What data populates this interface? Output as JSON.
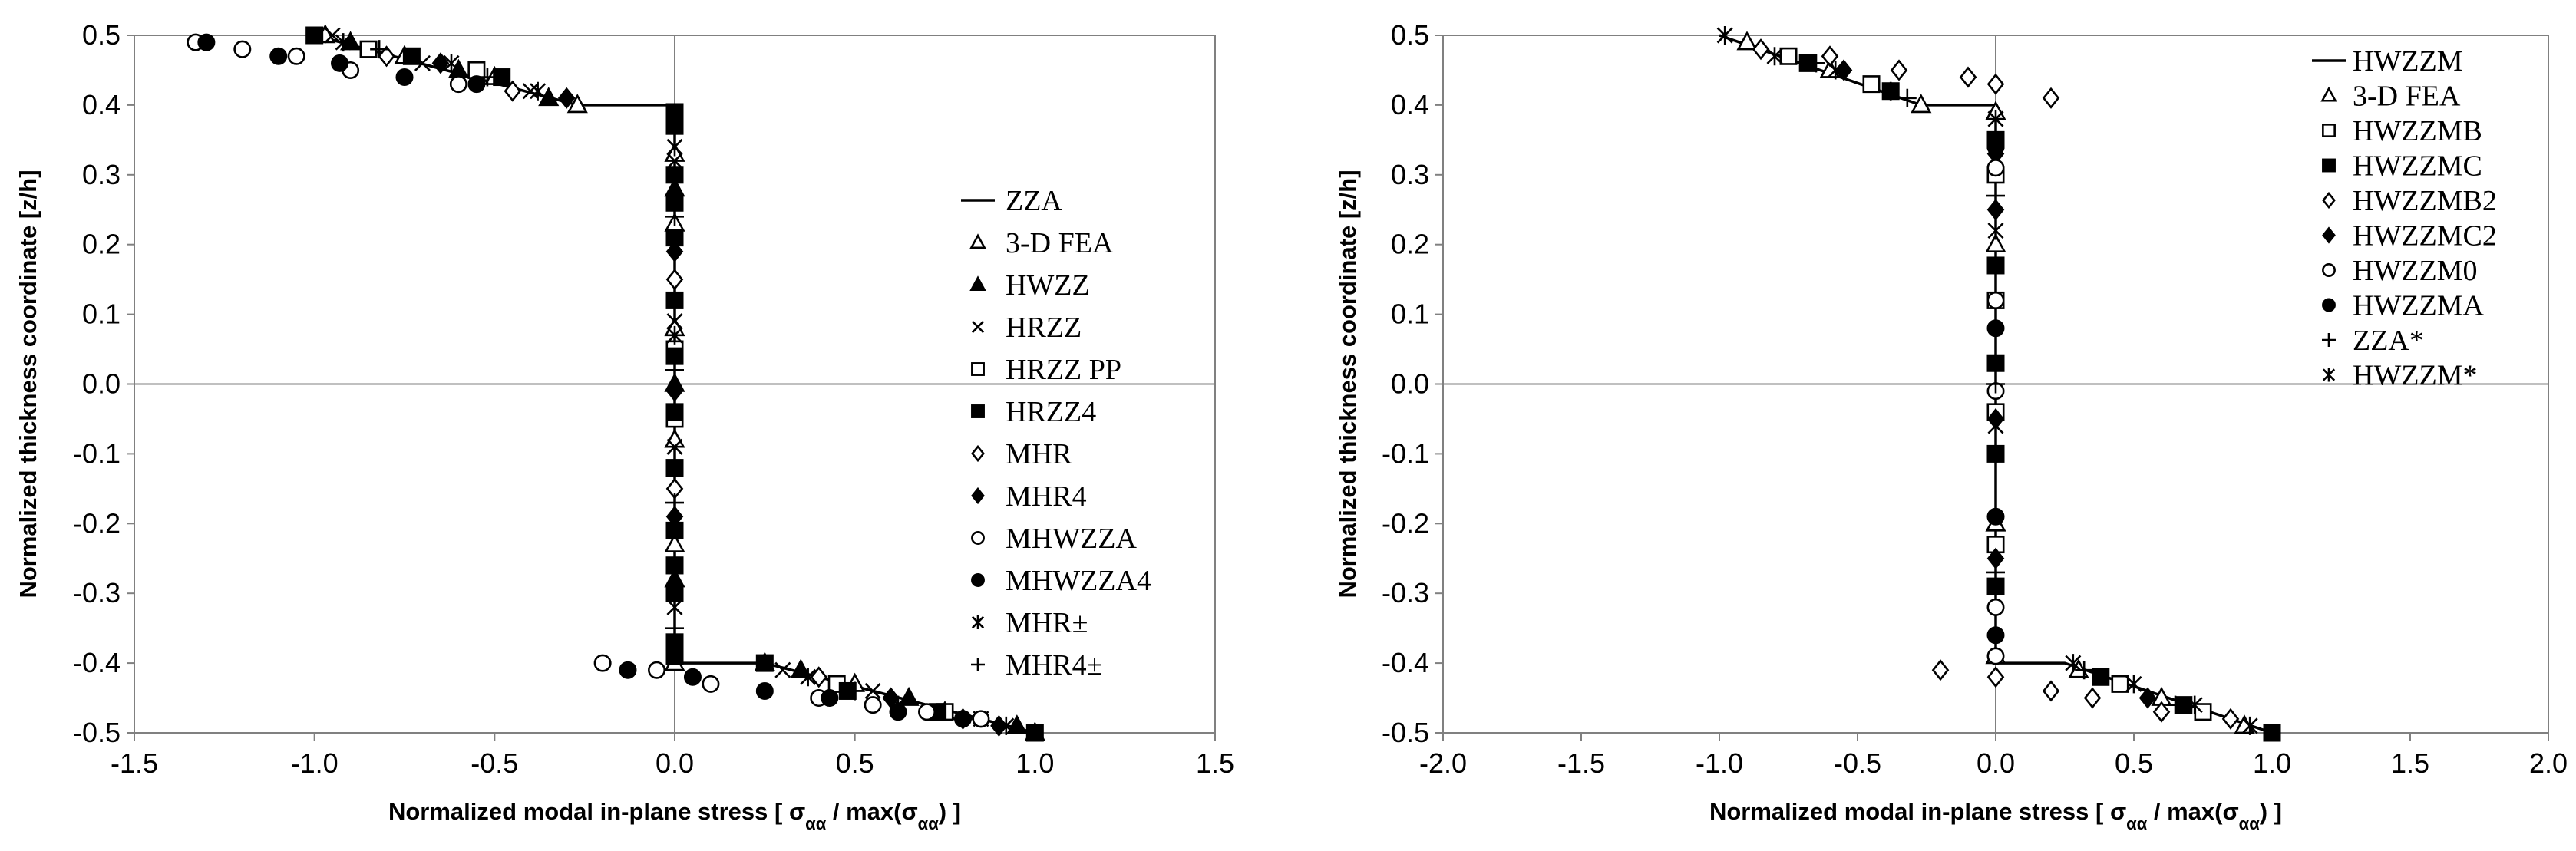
{
  "chart_data": [
    {
      "type": "scatter",
      "title": "",
      "xlabel": "Normalized modal in-plane stress   [ σ_αα / max(σ_αα) ]",
      "ylabel": "Normalized thickness coordinate [z/h]",
      "xlim": [
        -1.5,
        1.5
      ],
      "ylim": [
        -0.5,
        0.5
      ],
      "xticks": [
        "-1.5",
        "-1.0",
        "-0.5",
        "0.0",
        "0.5",
        "1.0",
        "1.5"
      ],
      "yticks": [
        "0.5",
        "0.4",
        "0.3",
        "0.2",
        "0.1",
        "0.0",
        "-0.1",
        "-0.2",
        "-0.3",
        "-0.4",
        "-0.5"
      ],
      "legend_position": "right-center",
      "reference_line": {
        "name": "ZZA",
        "x": [
          -1.0,
          -0.27,
          0.0,
          0.0,
          0.25,
          1.0
        ],
        "y": [
          0.5,
          0.4,
          0.4,
          -0.4,
          -0.4,
          -0.5
        ]
      },
      "series": [
        {
          "name": "ZZA",
          "marker": "line"
        },
        {
          "name": "3-D FEA",
          "marker": "triangle-open",
          "x": [
            -0.97,
            -0.75,
            -0.5,
            -0.27,
            0.0,
            0.0,
            0.0,
            0.0,
            0.0,
            0.0,
            0.25,
            0.5,
            0.75,
            1.0
          ],
          "y": [
            0.5,
            0.47,
            0.44,
            0.4,
            0.33,
            0.23,
            0.08,
            -0.08,
            -0.23,
            -0.4,
            -0.4,
            -0.43,
            -0.47,
            -0.5
          ]
        },
        {
          "name": "HWZZ",
          "marker": "triangle-filled",
          "x": [
            -0.9,
            -0.6,
            -0.35,
            0.0,
            0.0,
            0.0,
            0.35,
            0.65,
            0.95
          ],
          "y": [
            0.49,
            0.45,
            0.41,
            0.28,
            0.0,
            -0.28,
            -0.41,
            -0.45,
            -0.49
          ]
        },
        {
          "name": "HRZZ",
          "marker": "x",
          "x": [
            -0.95,
            -0.7,
            -0.4,
            0.0,
            0.0,
            0.0,
            0.0,
            0.3,
            0.55,
            0.85
          ],
          "y": [
            0.5,
            0.46,
            0.42,
            0.32,
            0.09,
            -0.09,
            -0.32,
            -0.41,
            -0.44,
            -0.48
          ]
        },
        {
          "name": "HRZZ PP",
          "marker": "square-open",
          "x": [
            -0.85,
            -0.55,
            0.0,
            0.0,
            0.0,
            0.0,
            0.45,
            0.75
          ],
          "y": [
            0.48,
            0.45,
            0.26,
            0.05,
            -0.05,
            -0.26,
            -0.43,
            -0.47
          ]
        },
        {
          "name": "HRZZ4",
          "marker": "square-filled",
          "x": [
            -1.0,
            -0.73,
            -0.48,
            0.0,
            0.0,
            0.0,
            0.0,
            0.0,
            0.0,
            0.0,
            0.0,
            0.0,
            0.0,
            0.0,
            0.0,
            0.0,
            0.0,
            0.25,
            0.48,
            0.73,
            1.0
          ],
          "y": [
            0.5,
            0.47,
            0.44,
            0.39,
            0.37,
            0.3,
            0.26,
            0.21,
            0.12,
            0.04,
            -0.04,
            -0.12,
            -0.21,
            -0.26,
            -0.3,
            -0.37,
            -0.39,
            -0.4,
            -0.44,
            -0.47,
            -0.5
          ]
        },
        {
          "name": "MHR",
          "marker": "diamond-open",
          "x": [
            -0.8,
            -0.45,
            0.0,
            0.0,
            0.4,
            0.8
          ],
          "y": [
            0.47,
            0.42,
            0.15,
            -0.15,
            -0.42,
            -0.48
          ]
        },
        {
          "name": "MHR4",
          "marker": "diamond-filled",
          "x": [
            -0.65,
            -0.3,
            0.0,
            0.0,
            0.0,
            0.6,
            0.9
          ],
          "y": [
            0.46,
            0.41,
            0.19,
            -0.01,
            -0.19,
            -0.45,
            -0.49
          ]
        },
        {
          "name": "MHWZZA",
          "marker": "circle-open",
          "x": [
            -1.33,
            -1.2,
            -1.05,
            -0.9,
            -0.6,
            -0.2,
            -0.05,
            0.1,
            0.4,
            0.55,
            0.7,
            0.85
          ],
          "y": [
            0.49,
            0.48,
            0.47,
            0.45,
            0.43,
            -0.4,
            -0.41,
            -0.43,
            -0.45,
            -0.46,
            -0.47,
            -0.48
          ]
        },
        {
          "name": "MHWZZA4",
          "marker": "circle-filled",
          "x": [
            -1.3,
            -1.1,
            -0.93,
            -0.75,
            -0.55,
            -0.13,
            0.05,
            0.25,
            0.43,
            0.62,
            0.8
          ],
          "y": [
            0.49,
            0.47,
            0.46,
            0.44,
            0.43,
            -0.41,
            -0.42,
            -0.44,
            -0.45,
            -0.47,
            -0.48
          ]
        },
        {
          "name": "MHR±",
          "marker": "asterisk",
          "x": [
            -0.92,
            -0.62,
            -0.38,
            0.0,
            0.0,
            0.0,
            0.0,
            0.37,
            0.62,
            0.92
          ],
          "y": [
            0.49,
            0.46,
            0.42,
            0.34,
            0.07,
            -0.04,
            -0.3,
            -0.42,
            -0.46,
            -0.49
          ]
        },
        {
          "name": "MHR4±",
          "marker": "plus",
          "x": [
            -0.82,
            -0.52,
            0.0,
            0.0,
            0.0,
            0.0,
            0.5,
            0.8
          ],
          "y": [
            0.48,
            0.44,
            0.24,
            0.02,
            -0.17,
            -0.35,
            -0.44,
            -0.48
          ]
        }
      ]
    },
    {
      "type": "scatter",
      "title": "",
      "xlabel": "Normalized modal in-plane stress   [ σ_αα / max(σ_αα) ]",
      "ylabel": "Normalized thickness coordinate [z/h]",
      "xlim": [
        -2.0,
        2.0
      ],
      "ylim": [
        -0.5,
        0.5
      ],
      "xticks": [
        "-2.0",
        "-1.5",
        "-1.0",
        "-0.5",
        "0.0",
        "0.5",
        "1.0",
        "1.5",
        "2.0"
      ],
      "yticks": [
        "0.5",
        "0.4",
        "0.3",
        "0.2",
        "0.1",
        "0.0",
        "-0.1",
        "-0.2",
        "-0.3",
        "-0.4",
        "-0.5"
      ],
      "legend_position": "top-right",
      "reference_line": {
        "name": "HWZZM",
        "x": [
          -1.0,
          -0.27,
          0.0,
          0.0,
          0.25,
          1.0
        ],
        "y": [
          0.5,
          0.4,
          0.4,
          -0.4,
          -0.4,
          -0.5
        ]
      },
      "series": [
        {
          "name": "HWZZM",
          "marker": "line"
        },
        {
          "name": "3-D FEA",
          "marker": "triangle-open",
          "x": [
            -0.9,
            -0.6,
            -0.27,
            0.0,
            0.0,
            0.0,
            0.0,
            0.3,
            0.6,
            0.9
          ],
          "y": [
            0.49,
            0.45,
            0.4,
            0.39,
            0.2,
            -0.2,
            -0.39,
            -0.41,
            -0.45,
            -0.49
          ]
        },
        {
          "name": "HWZZMB",
          "marker": "square-open",
          "x": [
            -0.75,
            -0.45,
            0.0,
            0.0,
            0.0,
            0.0,
            0.45,
            0.75
          ],
          "y": [
            0.47,
            0.43,
            0.3,
            0.12,
            -0.04,
            -0.23,
            -0.43,
            -0.47
          ]
        },
        {
          "name": "HWZZMC",
          "marker": "square-filled",
          "x": [
            -0.68,
            -0.38,
            0.0,
            0.0,
            0.0,
            0.0,
            0.0,
            0.38,
            0.68,
            1.0
          ],
          "y": [
            0.46,
            0.42,
            0.35,
            0.17,
            0.03,
            -0.1,
            -0.29,
            -0.42,
            -0.46,
            -0.5
          ]
        },
        {
          "name": "HWZZMB2",
          "marker": "diamond-open",
          "x": [
            -0.85,
            -0.6,
            -0.35,
            -0.1,
            0.0,
            0.2,
            -0.2,
            0.0,
            0.2,
            0.35,
            0.6,
            0.85
          ],
          "y": [
            0.48,
            0.47,
            0.45,
            0.44,
            0.43,
            0.41,
            -0.41,
            -0.42,
            -0.44,
            -0.45,
            -0.47,
            -0.48
          ]
        },
        {
          "name": "HWZZMC2",
          "marker": "diamond-filled",
          "x": [
            -0.55,
            0.0,
            0.0,
            0.0,
            0.0,
            0.55
          ],
          "y": [
            0.45,
            0.33,
            0.25,
            -0.05,
            -0.25,
            -0.45
          ]
        },
        {
          "name": "HWZZM0",
          "marker": "circle-open",
          "x": [
            0.0,
            0.0,
            0.0,
            0.0,
            0.0
          ],
          "y": [
            0.31,
            0.12,
            -0.01,
            -0.32,
            -0.39
          ]
        },
        {
          "name": "HWZZMA",
          "marker": "circle-filled",
          "x": [
            0.0,
            0.0,
            0.0,
            0.0,
            0.0
          ],
          "y": [
            0.34,
            0.08,
            -0.1,
            -0.19,
            -0.36
          ]
        },
        {
          "name": "ZZA*",
          "marker": "plus",
          "x": [
            -0.65,
            -0.32,
            0.0,
            0.0,
            0.0,
            0.32,
            0.65
          ],
          "y": [
            0.46,
            0.41,
            0.27,
            0.0,
            -0.27,
            -0.41,
            -0.46
          ]
        },
        {
          "name": "HWZZM*",
          "marker": "asterisk",
          "x": [
            -0.98,
            -0.8,
            -0.58,
            -0.38,
            0.0,
            0.0,
            0.0,
            0.28,
            0.5,
            0.72,
            0.92
          ],
          "y": [
            0.5,
            0.47,
            0.45,
            0.42,
            0.38,
            0.22,
            -0.06,
            -0.4,
            -0.43,
            -0.46,
            -0.49
          ]
        }
      ]
    }
  ]
}
